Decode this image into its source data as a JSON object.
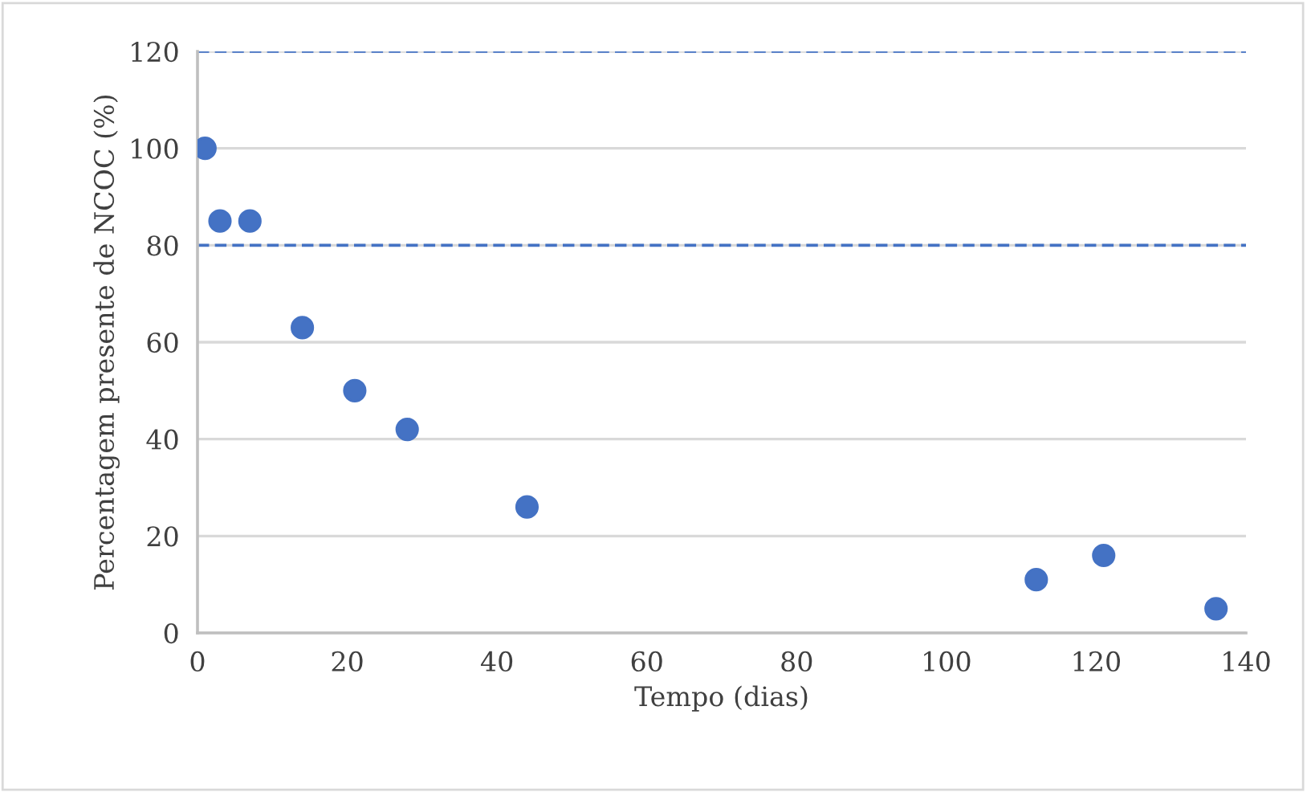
{
  "chart_data": {
    "type": "scatter",
    "xlabel": "Tempo (dias)",
    "ylabel": "Percentagem presente de NCOC (%)",
    "x": [
      1,
      3,
      7,
      14,
      21,
      28,
      44,
      112,
      121,
      136
    ],
    "series": [
      {
        "color": "#4472c4",
        "values": [
          100,
          85,
          85,
          63,
          50,
          42,
          26,
          11,
          16,
          5
        ]
      }
    ],
    "xlim": [
      0,
      140
    ],
    "xticks": [
      0,
      20,
      40,
      60,
      80,
      100,
      120,
      140
    ],
    "ylim": [
      0,
      120
    ],
    "yticks": [
      0,
      20,
      40,
      60,
      80,
      100,
      120
    ],
    "grid": "y",
    "marker": "circle",
    "ref_lines": [
      {
        "axis": "y",
        "value": 80,
        "color": "#4472c4",
        "line_style": "dashed"
      },
      {
        "axis": "y",
        "value": 120,
        "color": "#4472c4",
        "line_style": "dashed"
      }
    ]
  }
}
